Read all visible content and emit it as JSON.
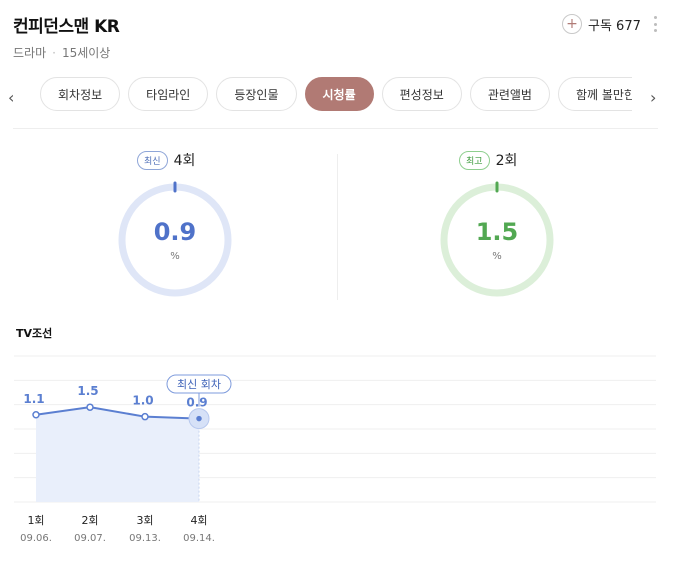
{
  "header": {
    "title": "컨피던스맨 KR",
    "genre": "드라마",
    "rating": "15세이상",
    "subscribe_label": "구독 677"
  },
  "icons": {
    "subscribe": "plus-icon",
    "more": "kebab-icon",
    "prev": "chevron-left-icon",
    "next": "chevron-right-icon"
  },
  "tabs": [
    {
      "label": "회차정보"
    },
    {
      "label": "타임라인"
    },
    {
      "label": "등장인물"
    },
    {
      "label": "시청률",
      "active": true
    },
    {
      "label": "편성정보"
    },
    {
      "label": "관련앨범"
    },
    {
      "label": "함께 볼만한"
    }
  ],
  "gauges": {
    "latest": {
      "badge": "최신",
      "episode": "4회",
      "value": "0.9",
      "unit": "%",
      "color": "#4f72c9",
      "track": "#dfe6f7"
    },
    "best": {
      "badge": "최고",
      "episode": "2회",
      "value": "1.5",
      "unit": "%",
      "color": "#52a852",
      "track": "#dcefd9"
    }
  },
  "chart_data": {
    "type": "line",
    "network": "TV조선",
    "annotation": "최신 회차",
    "x": [
      "1회",
      "2회",
      "3회",
      "4회"
    ],
    "dates": [
      "09.06.",
      "09.07.",
      "09.13.",
      "09.14."
    ],
    "values": [
      1.1,
      1.5,
      1.0,
      0.9
    ],
    "value_labels": [
      "1.1",
      "1.5",
      "1.0",
      "0.9"
    ],
    "ylim": [
      -3.5,
      4.2
    ],
    "grid": true,
    "color": "#5b7fd1",
    "fill": "#e9effb"
  }
}
